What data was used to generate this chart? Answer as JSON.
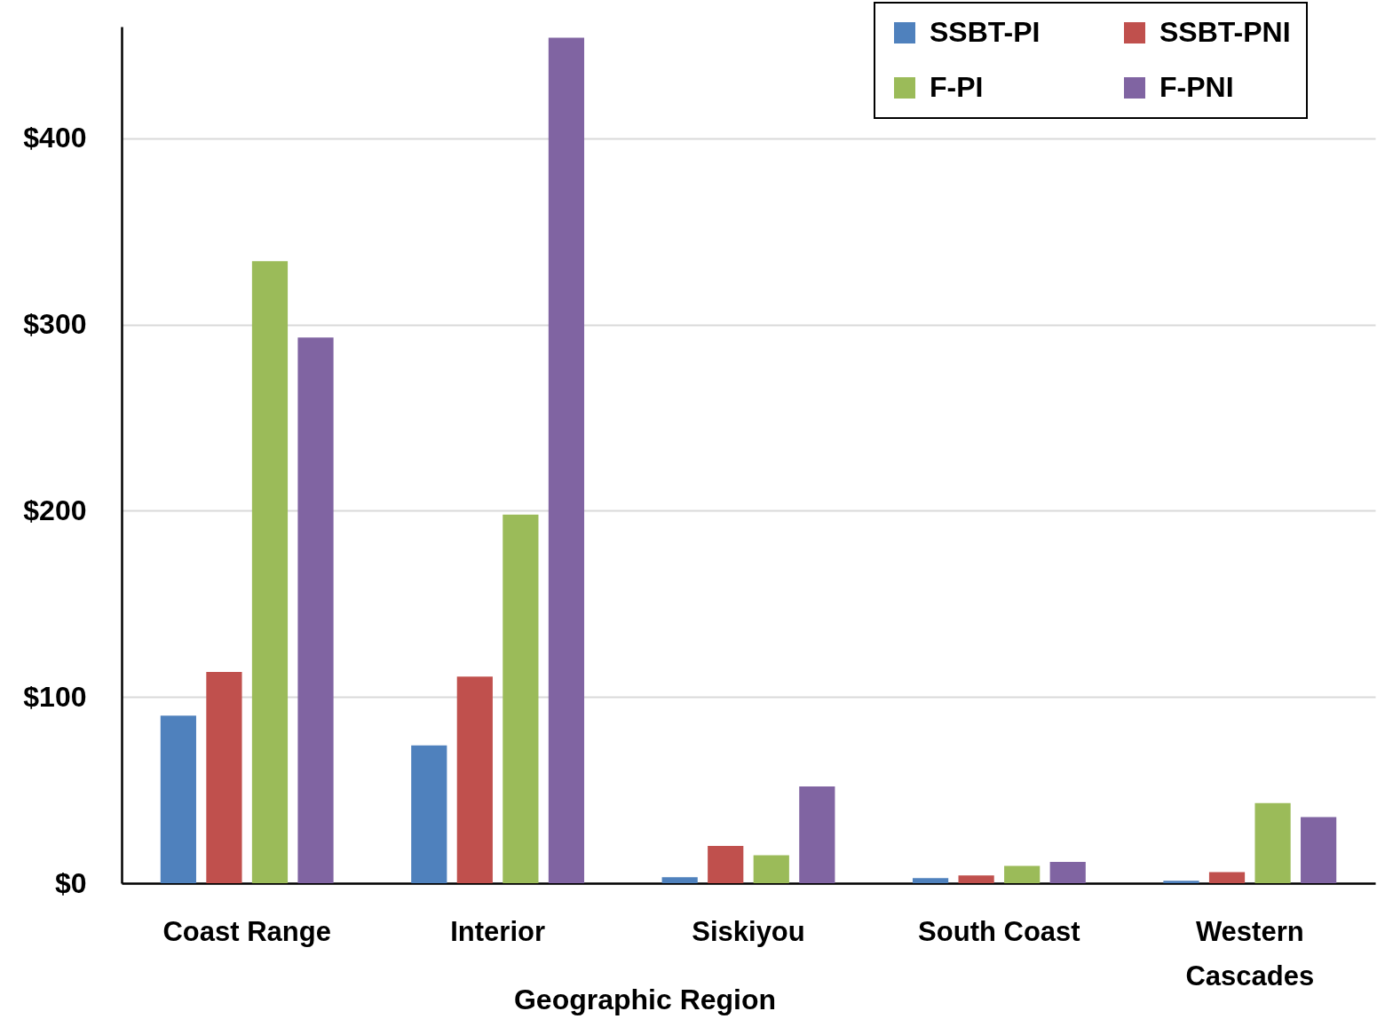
{
  "chart_data": {
    "type": "bar",
    "xlabel": "Geographic Region",
    "categories": [
      "Coast Range",
      "Interior",
      "Siskiyou",
      "South Coast",
      "Western Cascades"
    ],
    "series": [
      {
        "name": "SSBT-PI",
        "color": "#4f81bd",
        "values": [
          90,
          74,
          3.2,
          2.7,
          1.3
        ]
      },
      {
        "name": "SSBT-PNI",
        "color": "#c0504d",
        "values": [
          113.5,
          111,
          20,
          4.2,
          6
        ]
      },
      {
        "name": "F-PI",
        "color": "#9bbb59",
        "values": [
          334,
          198,
          15,
          9.3,
          43
        ]
      },
      {
        "name": "F-PNI",
        "color": "#8064a2",
        "values": [
          293,
          454,
          52,
          11.4,
          35.5
        ]
      }
    ],
    "ylim": [
      0,
      460
    ],
    "yticks": [
      {
        "value": 0,
        "label": "$0"
      },
      {
        "value": 100,
        "label": "$100"
      },
      {
        "value": 200,
        "label": "$200"
      },
      {
        "value": 300,
        "label": "$300"
      },
      {
        "value": 400,
        "label": "$400"
      }
    ],
    "grid": "y",
    "legend": "top right"
  }
}
